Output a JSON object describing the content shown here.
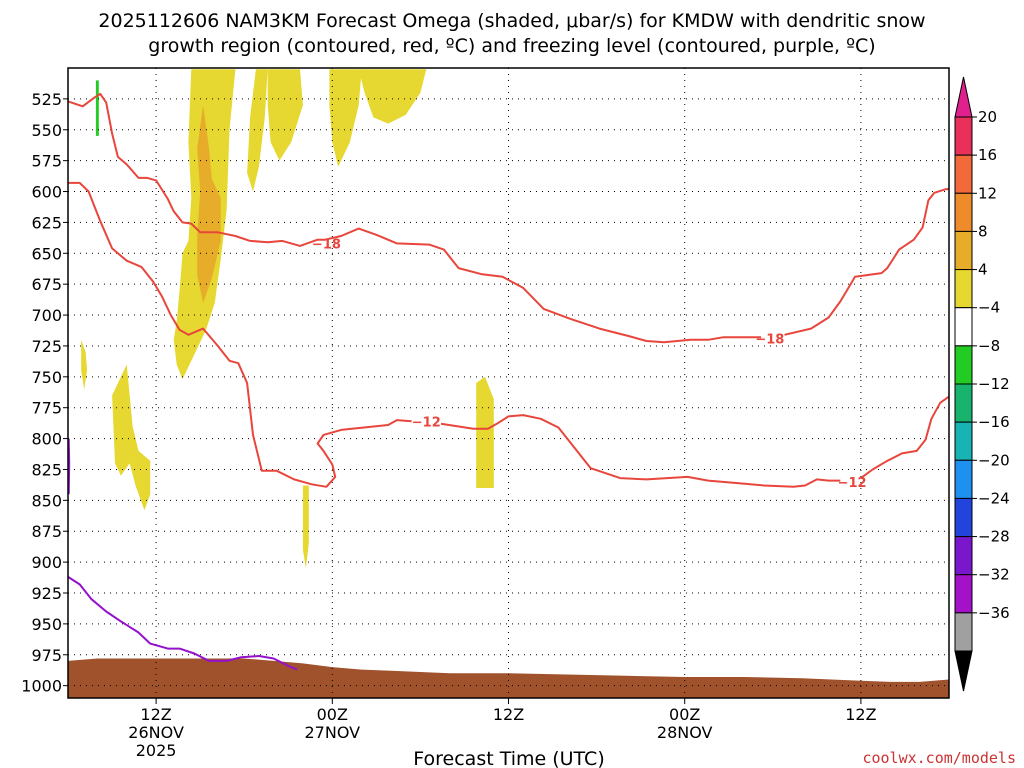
{
  "chart_data": {
    "type": "time-height cross-section",
    "title_line1": "2025112606 NAM3KM Forecast Omega (shaded, μbar/s) for KMDW with dendritic snow",
    "title_line2": "growth region (contoured, red, ºC) and freezing level (contoured, purple, ºC)",
    "xlabel": "Forecast Time (UTC)",
    "credit": "coolwx.com/models",
    "y_axis": {
      "units": "hPa",
      "range": [
        1010,
        500
      ],
      "ticks": [
        "525",
        "550",
        "575",
        "600",
        "625",
        "650",
        "675",
        "700",
        "725",
        "750",
        "775",
        "800",
        "825",
        "850",
        "875",
        "900",
        "925",
        "950",
        "975",
        "1000"
      ]
    },
    "x_axis": {
      "units": "forecast hour from 2025-11-26 06Z",
      "range": [
        0,
        60
      ],
      "ticks": [
        {
          "hour": 6,
          "line1": "12Z",
          "line2": "26NOV",
          "line3": "2025"
        },
        {
          "hour": 18,
          "line1": "00Z",
          "line2": "27NOV",
          "line3": ""
        },
        {
          "hour": 30,
          "line1": "12Z",
          "line2": "",
          "line3": ""
        },
        {
          "hour": 42,
          "line1": "00Z",
          "line2": "28NOV",
          "line3": ""
        },
        {
          "hour": 54,
          "line1": "12Z",
          "line2": "",
          "line3": ""
        }
      ]
    },
    "colorbar": {
      "labels": [
        "20",
        "16",
        "12",
        "8",
        "4",
        "−4",
        "−8",
        "−12",
        "−16",
        "−20",
        "−24",
        "−28",
        "−32",
        "−36"
      ],
      "colors": [
        "#e8305a",
        "#f26a3a",
        "#ee8c2c",
        "#e6ac2a",
        "#e6d830",
        "#ffffff",
        "#22cc22",
        "#18b46e",
        "#18b4b4",
        "#1e90ee",
        "#2244dd",
        "#7a16cc",
        "#a312c8",
        "#a0a0a0"
      ],
      "over_color": "#e0208c",
      "under_color": "#000000"
    },
    "series": [
      {
        "name": "-18",
        "kind": "dendritic growth isotherm (upper)",
        "color": "#e8463c",
        "label_points": [
          {
            "x": 17.6,
            "y": 642
          },
          {
            "x": 47.8,
            "y": 719
          }
        ],
        "points": [
          [
            0,
            527
          ],
          [
            1,
            531
          ],
          [
            1.8,
            524
          ],
          [
            2.2,
            521
          ],
          [
            2.6,
            528
          ],
          [
            3.0,
            553
          ],
          [
            3.4,
            572
          ],
          [
            4.0,
            578
          ],
          [
            4.8,
            589
          ],
          [
            5.4,
            589
          ],
          [
            6.0,
            591
          ],
          [
            6.8,
            606
          ],
          [
            7.2,
            616
          ],
          [
            7.8,
            625
          ],
          [
            8.4,
            626
          ],
          [
            9.0,
            633
          ],
          [
            10.2,
            633
          ],
          [
            11.4,
            636
          ],
          [
            12.4,
            640
          ],
          [
            13.6,
            641
          ],
          [
            14.6,
            640
          ],
          [
            15.8,
            644
          ],
          [
            17.0,
            639
          ],
          [
            17.5,
            639
          ],
          [
            18.6,
            636
          ],
          [
            19.8,
            630
          ],
          [
            21.0,
            635
          ],
          [
            22.4,
            642
          ],
          [
            24.6,
            643
          ],
          [
            25.6,
            647
          ],
          [
            26.6,
            662
          ],
          [
            28.2,
            667
          ],
          [
            29.6,
            669
          ],
          [
            31.0,
            678
          ],
          [
            32.4,
            695
          ],
          [
            34.2,
            703
          ],
          [
            36.2,
            711
          ],
          [
            38.2,
            717
          ],
          [
            39.4,
            721
          ],
          [
            40.6,
            722
          ],
          [
            42.4,
            720
          ],
          [
            43.6,
            720
          ],
          [
            44.6,
            718
          ],
          [
            47.2,
            718
          ]
        ]
      },
      {
        "name": "-18",
        "kind": "dendritic growth isotherm (upper, continued)",
        "color": "#e8463c",
        "label_points": [],
        "points": [
          [
            48.8,
            716
          ],
          [
            50.6,
            711
          ],
          [
            51.8,
            702
          ],
          [
            52.6,
            689
          ],
          [
            53.0,
            681
          ],
          [
            53.6,
            669
          ],
          [
            55.4,
            666
          ],
          [
            55.8,
            662
          ],
          [
            56.6,
            647
          ],
          [
            57.6,
            639
          ],
          [
            58.2,
            629
          ],
          [
            58.6,
            607
          ],
          [
            59.0,
            601
          ],
          [
            59.8,
            598
          ],
          [
            60.0,
            598
          ]
        ]
      },
      {
        "name": "-12",
        "kind": "dendritic growth isotherm (lower)",
        "color": "#e8463c",
        "label_points": [
          {
            "x": 24.4,
            "y": 786
          },
          {
            "x": 53.4,
            "y": 835
          }
        ],
        "points": [
          [
            0,
            593
          ],
          [
            0.8,
            593
          ],
          [
            1.4,
            600
          ],
          [
            2.2,
            624
          ],
          [
            3.0,
            646
          ],
          [
            4.0,
            656
          ],
          [
            5.0,
            661
          ],
          [
            5.8,
            673
          ],
          [
            6.4,
            685
          ],
          [
            7.0,
            700
          ],
          [
            7.6,
            712
          ],
          [
            8.2,
            716
          ],
          [
            9.2,
            711
          ],
          [
            10.2,
            725
          ],
          [
            11.0,
            737
          ],
          [
            11.6,
            739
          ],
          [
            12.2,
            755
          ],
          [
            12.6,
            797
          ],
          [
            13.2,
            826
          ],
          [
            14.2,
            826
          ],
          [
            15.4,
            833
          ],
          [
            16.6,
            837
          ],
          [
            17.6,
            839
          ],
          [
            18.2,
            831
          ],
          [
            18.0,
            821
          ],
          [
            17.4,
            810
          ],
          [
            17.0,
            804
          ],
          [
            17.4,
            797
          ],
          [
            18.6,
            793
          ],
          [
            21.8,
            789
          ],
          [
            22.4,
            785
          ],
          [
            23.4,
            786
          ]
        ]
      },
      {
        "name": "-12",
        "kind": "dendritic growth isotherm (lower, continued)",
        "color": "#e8463c",
        "label_points": [],
        "points": [
          [
            25.4,
            788
          ],
          [
            27.6,
            792
          ],
          [
            28.6,
            792
          ],
          [
            29.2,
            788
          ],
          [
            30.0,
            782
          ],
          [
            31.0,
            781
          ],
          [
            32.2,
            784
          ],
          [
            33.4,
            791
          ],
          [
            34.4,
            806
          ],
          [
            35.6,
            824
          ],
          [
            37.6,
            832
          ],
          [
            39.4,
            833
          ],
          [
            42.2,
            831
          ],
          [
            43.6,
            834
          ],
          [
            45.6,
            836
          ],
          [
            47.4,
            838
          ],
          [
            49.4,
            839
          ],
          [
            50.2,
            838
          ],
          [
            51.0,
            833
          ],
          [
            51.8,
            834
          ],
          [
            52.6,
            834
          ]
        ]
      },
      {
        "name": "-12",
        "kind": "dendritic growth isotherm (lower, continued 2)",
        "color": "#e8463c",
        "label_points": [],
        "points": [
          [
            54.0,
            832
          ],
          [
            54.8,
            825
          ],
          [
            55.8,
            818
          ],
          [
            56.8,
            812
          ],
          [
            57.8,
            810
          ],
          [
            58.4,
            801
          ],
          [
            58.8,
            784
          ],
          [
            59.4,
            771
          ],
          [
            60.0,
            766
          ]
        ]
      },
      {
        "name": "0",
        "kind": "freezing level",
        "color": "#9410cc",
        "label_points": [],
        "points": [
          [
            0,
            912
          ],
          [
            0.8,
            918
          ],
          [
            1.6,
            930
          ],
          [
            2.6,
            940
          ],
          [
            3.6,
            948
          ],
          [
            4.8,
            957
          ],
          [
            5.6,
            966
          ],
          [
            6.8,
            970
          ],
          [
            7.6,
            970
          ],
          [
            8.6,
            974
          ],
          [
            9.6,
            980
          ],
          [
            10.8,
            980
          ],
          [
            11.8,
            977
          ],
          [
            13.0,
            976
          ],
          [
            14.0,
            978
          ],
          [
            15.0,
            984
          ],
          [
            15.6,
            987
          ]
        ]
      },
      {
        "name": "0",
        "kind": "freezing level (left edge fragment)",
        "color": "#9410cc",
        "label_points": [],
        "points": [
          [
            0.05,
            800
          ],
          [
            0.08,
            820
          ],
          [
            0.05,
            845
          ]
        ]
      }
    ],
    "shaded": [
      {
        "band": "4 to 8",
        "color": "#e6d830",
        "points": [
          [
            8.4,
            501
          ],
          [
            11.4,
            501
          ],
          [
            11.0,
            550
          ],
          [
            10.8,
            615
          ],
          [
            10.4,
            655
          ],
          [
            10.0,
            690
          ],
          [
            9.4,
            712
          ],
          [
            8.8,
            727
          ],
          [
            8.2,
            742
          ],
          [
            7.8,
            752
          ],
          [
            7.4,
            740
          ],
          [
            7.2,
            720
          ],
          [
            7.4,
            705
          ],
          [
            7.6,
            680
          ],
          [
            7.8,
            650
          ],
          [
            8.2,
            640
          ],
          [
            8.4,
            605
          ],
          [
            8.2,
            560
          ]
        ]
      },
      {
        "band": "8 to 12",
        "color": "#e6ac2a",
        "points": [
          [
            9.2,
            530
          ],
          [
            9.6,
            565
          ],
          [
            9.8,
            590
          ],
          [
            10.4,
            605
          ],
          [
            10.4,
            640
          ],
          [
            9.8,
            670
          ],
          [
            9.2,
            690
          ],
          [
            8.8,
            668
          ],
          [
            8.8,
            635
          ],
          [
            9.0,
            600
          ],
          [
            8.8,
            565
          ]
        ]
      },
      {
        "band": "4 to 8",
        "color": "#e6d830",
        "points": [
          [
            12.8,
            501
          ],
          [
            13.6,
            501
          ],
          [
            13.4,
            540
          ],
          [
            13.0,
            580
          ],
          [
            12.6,
            600
          ],
          [
            12.2,
            585
          ],
          [
            12.4,
            540
          ]
        ]
      },
      {
        "band": "4 to 8",
        "color": "#e6d830",
        "points": [
          [
            13.6,
            501
          ],
          [
            15.8,
            501
          ],
          [
            16.0,
            530
          ],
          [
            15.2,
            560
          ],
          [
            14.4,
            575
          ],
          [
            13.8,
            560
          ],
          [
            13.6,
            530
          ]
        ]
      },
      {
        "band": "4 to 8",
        "color": "#e6d830",
        "points": [
          [
            17.8,
            501
          ],
          [
            20.0,
            501
          ],
          [
            19.8,
            530
          ],
          [
            19.2,
            560
          ],
          [
            18.4,
            580
          ],
          [
            18.0,
            560
          ],
          [
            17.8,
            530
          ]
        ]
      },
      {
        "band": "4 to 8",
        "color": "#e6d830",
        "points": [
          [
            19.8,
            501
          ],
          [
            24.4,
            501
          ],
          [
            24.0,
            520
          ],
          [
            23.0,
            538
          ],
          [
            21.8,
            545
          ],
          [
            20.8,
            540
          ],
          [
            20.2,
            520
          ]
        ]
      },
      {
        "band": "4 to 8",
        "color": "#e6d830",
        "points": [
          [
            0.9,
            720
          ],
          [
            1.2,
            730
          ],
          [
            1.3,
            745
          ],
          [
            1.1,
            760
          ],
          [
            0.9,
            745
          ]
        ]
      },
      {
        "band": "4 to 8",
        "color": "#e6d830",
        "points": [
          [
            3.0,
            765
          ],
          [
            4.0,
            740
          ],
          [
            4.4,
            790
          ],
          [
            4.8,
            810
          ],
          [
            5.6,
            818
          ],
          [
            5.6,
            845
          ],
          [
            5.2,
            858
          ],
          [
            4.6,
            838
          ],
          [
            4.2,
            820
          ],
          [
            3.6,
            830
          ],
          [
            3.2,
            820
          ]
        ]
      },
      {
        "band": "4 to 8",
        "color": "#e6d830",
        "points": [
          [
            16.0,
            838
          ],
          [
            16.4,
            838
          ],
          [
            16.4,
            885
          ],
          [
            16.2,
            905
          ],
          [
            16.0,
            890
          ]
        ]
      },
      {
        "band": "4 to 8",
        "color": "#e6d830",
        "points": [
          [
            27.8,
            755
          ],
          [
            28.4,
            750
          ],
          [
            29.0,
            768
          ],
          [
            29.0,
            800
          ],
          [
            29.0,
            840
          ],
          [
            27.8,
            840
          ],
          [
            27.8,
            800
          ]
        ]
      },
      {
        "band": "-4 to -8",
        "color": "#22cc22",
        "points": [
          [
            1.9,
            510
          ],
          [
            2.1,
            510
          ],
          [
            2.1,
            555
          ],
          [
            1.9,
            555
          ]
        ]
      }
    ],
    "terrain": {
      "color": "#a0522d",
      "top_points": [
        [
          0,
          980
        ],
        [
          2,
          978
        ],
        [
          4,
          978
        ],
        [
          6,
          978
        ],
        [
          8,
          978
        ],
        [
          10,
          978
        ],
        [
          12,
          978
        ],
        [
          14,
          980
        ],
        [
          16,
          982
        ],
        [
          18,
          985
        ],
        [
          20,
          987
        ],
        [
          22,
          988
        ],
        [
          26,
          990
        ],
        [
          30,
          990
        ],
        [
          34,
          991
        ],
        [
          38,
          992
        ],
        [
          42,
          993
        ],
        [
          46,
          993
        ],
        [
          50,
          994
        ],
        [
          54,
          996
        ],
        [
          56,
          997
        ],
        [
          58,
          997
        ],
        [
          60,
          995
        ]
      ],
      "bottom": 1010
    }
  }
}
